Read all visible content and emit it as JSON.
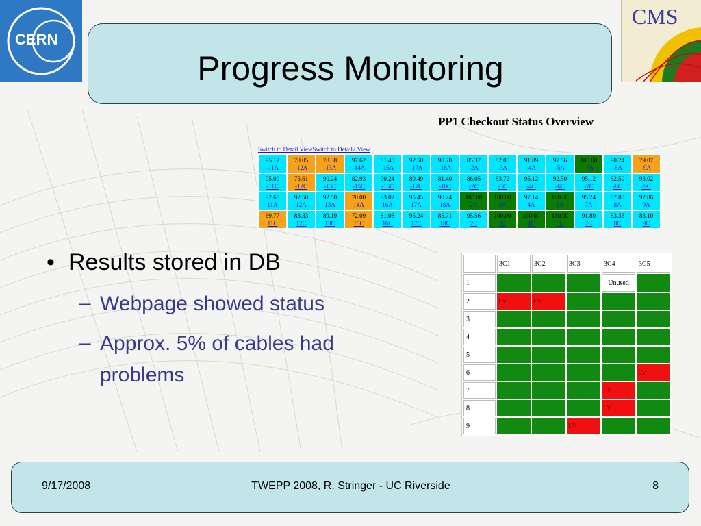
{
  "logos": {
    "cern": "CERN",
    "cms": "CMS"
  },
  "title": "Progress Monitoring",
  "overview": {
    "title": "PP1 Checkout Status Overview",
    "links": [
      "Switch to Detail View",
      "Switch to Detail2 View"
    ],
    "rows": [
      [
        [
          "95.12",
          "-11A",
          "cyan"
        ],
        [
          "78.05",
          "-12A",
          "orange"
        ],
        [
          "78.38",
          "-13A",
          "orange"
        ],
        [
          "97.62",
          "-14A",
          "cyan"
        ],
        [
          "81.40",
          "-16A",
          "cyan"
        ],
        [
          "92.50",
          "-17A",
          "cyan"
        ],
        [
          "90.70",
          "-18A",
          "cyan"
        ],
        [
          "85.37",
          "-2A",
          "cyan"
        ],
        [
          "82.05",
          "-3A",
          "cyan"
        ],
        [
          "91.89",
          "-4A",
          "cyan"
        ],
        [
          "97.56",
          "-5A",
          "cyan"
        ],
        [
          "100.00",
          "-7A",
          "green"
        ],
        [
          "90.24",
          "-8A",
          "cyan"
        ],
        [
          "79.07",
          "-9A",
          "orange"
        ]
      ],
      [
        [
          "95.00",
          "-11C",
          "cyan"
        ],
        [
          "75.61",
          "-12C",
          "orange"
        ],
        [
          "90.24",
          "-13C",
          "cyan"
        ],
        [
          "82.93",
          "-15C",
          "cyan"
        ],
        [
          "90.24",
          "-16C",
          "cyan"
        ],
        [
          "80.49",
          "-17C",
          "cyan"
        ],
        [
          "81.40",
          "-18C",
          "cyan"
        ],
        [
          "86.05",
          "-2C",
          "cyan"
        ],
        [
          "83.72",
          "-3C",
          "cyan"
        ],
        [
          "95.12",
          "-4C",
          "cyan"
        ],
        [
          "92.50",
          "-6C",
          "cyan"
        ],
        [
          "95.12",
          "-7C",
          "cyan"
        ],
        [
          "82.50",
          "-8C",
          "cyan"
        ],
        [
          "93.02",
          "-9C",
          "cyan"
        ]
      ],
      [
        [
          "92.68",
          "11A",
          "cyan"
        ],
        [
          "92.50",
          "12A",
          "cyan"
        ],
        [
          "92.50",
          "13A",
          "cyan"
        ],
        [
          "70.00",
          "14A",
          "orange"
        ],
        [
          "93.02",
          "16A",
          "cyan"
        ],
        [
          "95.45",
          "17A",
          "cyan"
        ],
        [
          "90.24",
          "18A",
          "cyan"
        ],
        [
          "100.00",
          "2A",
          "green"
        ],
        [
          "100.00",
          "3A",
          "green"
        ],
        [
          "97.14",
          "4A",
          "cyan"
        ],
        [
          "100.00",
          "5A",
          "green"
        ],
        [
          "95.24",
          "7A",
          "cyan"
        ],
        [
          "87.80",
          "8A",
          "cyan"
        ],
        [
          "92.86",
          "9A",
          "cyan"
        ]
      ],
      [
        [
          "69.77",
          "11C",
          "orange"
        ],
        [
          "83.33",
          "12C",
          "cyan"
        ],
        [
          "89.19",
          "13C",
          "cyan"
        ],
        [
          "72.09",
          "15C",
          "orange"
        ],
        [
          "81.08",
          "16C",
          "cyan"
        ],
        [
          "95.24",
          "17C",
          "cyan"
        ],
        [
          "85.71",
          "18C",
          "cyan"
        ],
        [
          "95.56",
          "2C",
          "cyan"
        ],
        [
          "100.00",
          "3C",
          "green"
        ],
        [
          "100.00",
          "4C",
          "green"
        ],
        [
          "100.00",
          "6C",
          "green"
        ],
        [
          "91.89",
          "7C",
          "cyan"
        ],
        [
          "83.33",
          "8C",
          "cyan"
        ],
        [
          "88.10",
          "9C",
          "cyan"
        ]
      ]
    ]
  },
  "bullets": {
    "main": "Results stored in DB",
    "sub1": "Webpage showed status",
    "sub2_line1": "Approx. 5% of cables had",
    "sub2_line2": "problems"
  },
  "cable_table": {
    "columns": [
      "3C1",
      "3C2",
      "3C3",
      "3C4",
      "3C5"
    ],
    "rows": [
      {
        "label": "1",
        "cells": [
          [
            "ok",
            ""
          ],
          [
            "ok",
            ""
          ],
          [
            "ok",
            ""
          ],
          [
            "unused",
            "Unused"
          ],
          [
            "ok",
            ""
          ]
        ]
      },
      {
        "label": "2",
        "cells": [
          [
            "fail",
            "LV"
          ],
          [
            "fail",
            "LV"
          ],
          [
            "ok",
            ""
          ],
          [
            "ok",
            ""
          ],
          [
            "ok",
            ""
          ]
        ]
      },
      {
        "label": "3",
        "cells": [
          [
            "ok",
            ""
          ],
          [
            "ok",
            ""
          ],
          [
            "ok",
            ""
          ],
          [
            "ok",
            ""
          ],
          [
            "ok",
            ""
          ]
        ]
      },
      {
        "label": "4",
        "cells": [
          [
            "ok",
            ""
          ],
          [
            "ok",
            ""
          ],
          [
            "ok",
            ""
          ],
          [
            "ok",
            ""
          ],
          [
            "ok",
            ""
          ]
        ]
      },
      {
        "label": "5",
        "cells": [
          [
            "ok",
            ""
          ],
          [
            "ok",
            ""
          ],
          [
            "ok",
            ""
          ],
          [
            "ok",
            ""
          ],
          [
            "ok",
            ""
          ]
        ]
      },
      {
        "label": "6",
        "cells": [
          [
            "ok",
            ""
          ],
          [
            "ok",
            ""
          ],
          [
            "ok",
            ""
          ],
          [
            "ok",
            ""
          ],
          [
            "fail",
            "LV"
          ]
        ]
      },
      {
        "label": "7",
        "cells": [
          [
            "ok",
            ""
          ],
          [
            "ok",
            ""
          ],
          [
            "ok",
            ""
          ],
          [
            "fail",
            "LV"
          ],
          [
            "ok",
            ""
          ]
        ]
      },
      {
        "label": "8",
        "cells": [
          [
            "ok",
            ""
          ],
          [
            "ok",
            ""
          ],
          [
            "ok",
            ""
          ],
          [
            "fail",
            "LV"
          ],
          [
            "ok",
            ""
          ]
        ]
      },
      {
        "label": "9",
        "cells": [
          [
            "ok",
            ""
          ],
          [
            "ok",
            ""
          ],
          [
            "fail",
            "LV"
          ],
          [
            "ok",
            ""
          ],
          [
            "ok",
            ""
          ]
        ]
      }
    ]
  },
  "footer": {
    "date": "9/17/2008",
    "center": "TWEPP 2008, R. Stringer - UC Riverside",
    "page": "8"
  },
  "colors": {
    "title_bg": "#c1e5e8",
    "cyan": "#00e6ff",
    "orange": "#f6a21a",
    "green": "#0a7c00",
    "fail": "#f01010",
    "ok": "#128a12",
    "subtext": "#3a3a8c"
  }
}
